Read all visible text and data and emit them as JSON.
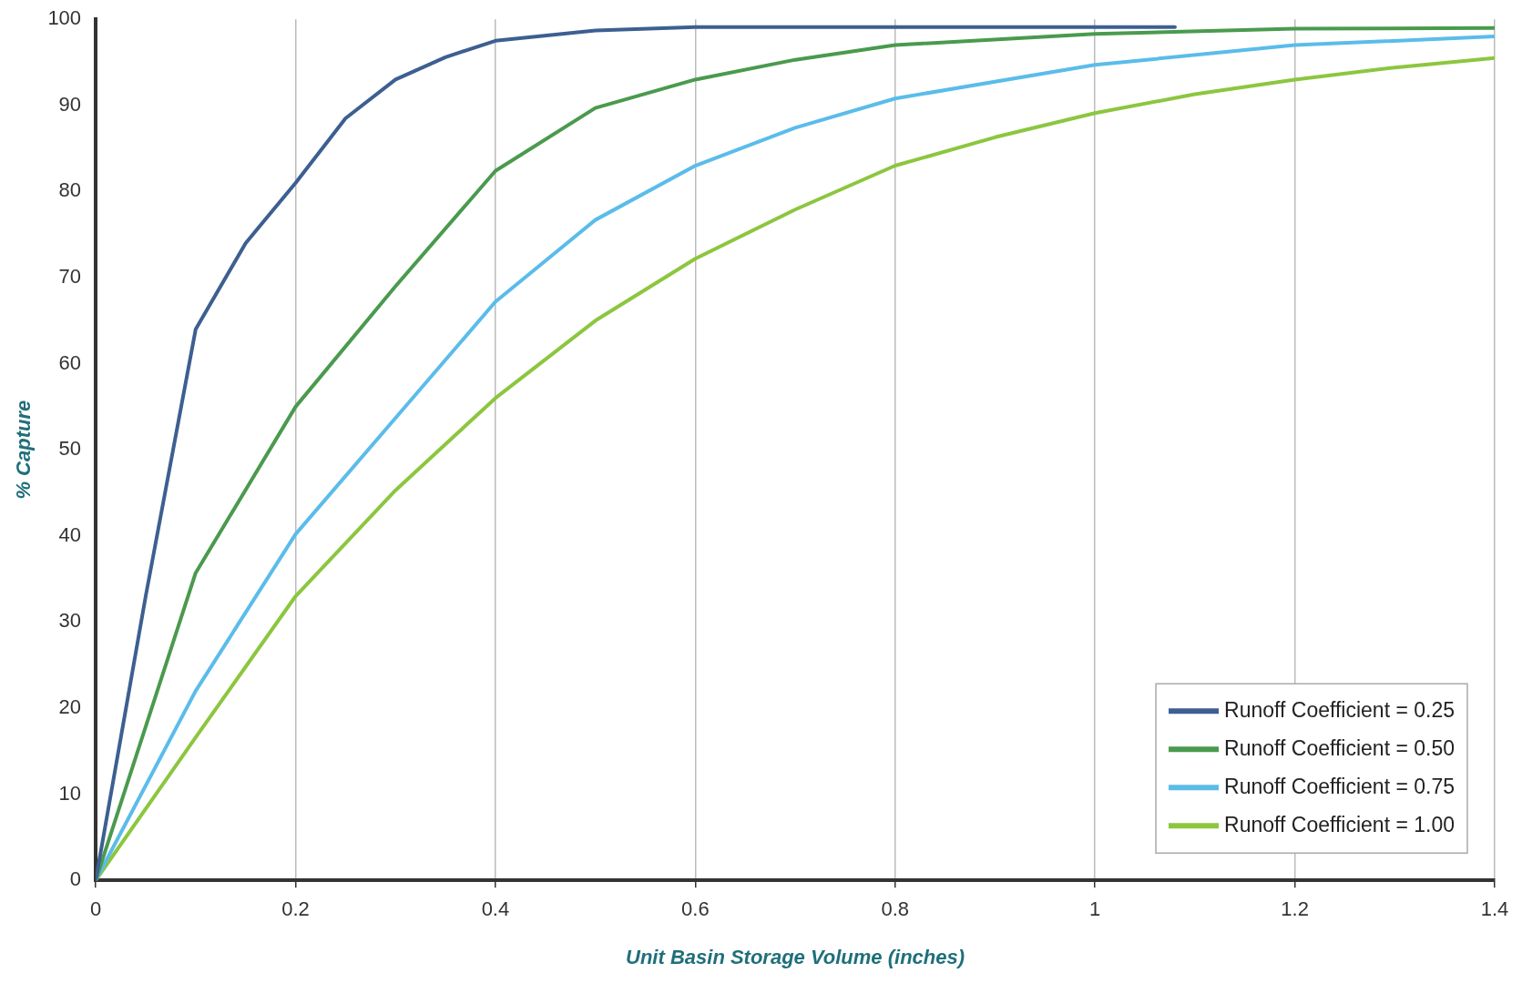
{
  "chart_data": {
    "type": "line",
    "xlabel": "Unit Basin Storage Volume (inches)",
    "ylabel": "% Capture",
    "xlim": [
      0,
      1.4
    ],
    "xticks": [
      0,
      0.2,
      0.4,
      0.6,
      0.8,
      1,
      1.2,
      1.4
    ],
    "ylim": [
      0,
      100
    ],
    "yticks": [
      0,
      10,
      20,
      30,
      40,
      50,
      60,
      70,
      80,
      90,
      100
    ],
    "grid": "x",
    "legend": "bottom right",
    "marker": "none",
    "line_style": "solid",
    "series": [
      {
        "name": "Runoff Coefficient = 0.25",
        "color": "#3d5f91",
        "x": [
          0,
          0.05,
          0.1,
          0.15,
          0.2,
          0.25,
          0.3,
          0.35,
          0.4,
          0.5,
          0.6,
          0.8,
          1.08
        ],
        "values": [
          0,
          33,
          64,
          74,
          81,
          88.5,
          93,
          95.6,
          97.5,
          98.7,
          99.1,
          99.1,
          99.1
        ]
      },
      {
        "name": "Runoff Coefficient = 0.50",
        "color": "#4a9a4e",
        "x": [
          0,
          0.1,
          0.2,
          0.3,
          0.4,
          0.5,
          0.6,
          0.7,
          0.8,
          1,
          1.2,
          1.4
        ],
        "values": [
          0,
          35.7,
          55,
          69,
          82.4,
          89.7,
          93,
          95.3,
          97,
          98.3,
          98.9,
          99
        ]
      },
      {
        "name": "Runoff Coefficient = 0.75",
        "color": "#5bbcea",
        "x": [
          0,
          0.1,
          0.2,
          0.3,
          0.4,
          0.5,
          0.6,
          0.7,
          0.8,
          1,
          1.2,
          1.4
        ],
        "values": [
          0,
          22,
          40.2,
          53.7,
          67.2,
          76.7,
          83,
          87.4,
          90.8,
          94.7,
          97,
          98
        ]
      },
      {
        "name": "Runoff Coefficient = 1.00",
        "color": "#8cc63f",
        "x": [
          0,
          0.1,
          0.2,
          0.3,
          0.4,
          0.5,
          0.6,
          0.7,
          0.8,
          0.9,
          1,
          1.1,
          1.2,
          1.3,
          1.4
        ],
        "values": [
          0,
          16.6,
          33,
          45.3,
          56,
          65,
          72.2,
          77.9,
          83,
          86.3,
          89.1,
          91.3,
          93,
          94.4,
          95.5
        ]
      }
    ]
  }
}
